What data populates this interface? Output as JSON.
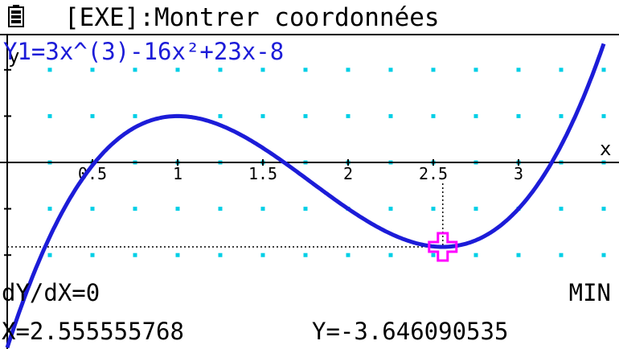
{
  "status_bar": {
    "title": "[EXE]:Montrer coordonnées",
    "battery_icon": "battery-icon"
  },
  "graph": {
    "function_label": "Y1=3x^(3)-16x²+23x-8",
    "x_axis_name": "x",
    "y_axis_name": "y",
    "x_tick_labels": [
      "0.5",
      "1",
      "1.5",
      "2",
      "2.5",
      "3"
    ],
    "curve_color": "#1c1cd8",
    "grid_dot_color": "#00cfe6",
    "cursor_color": "#ff00ff"
  },
  "chart_data": {
    "type": "line",
    "series": [
      {
        "name": "Y1=3x^(3)-16x²+23x-8",
        "formula": "3x^3-16x^2+23x-8"
      }
    ],
    "x": [
      0.0,
      0.25,
      0.5,
      0.75,
      1.0,
      1.25,
      1.5,
      1.75,
      2.0,
      2.25,
      2.5,
      2.75,
      3.0,
      3.25,
      3.5
    ],
    "y": [
      -8.0,
      -3.2,
      -0.13,
      1.47,
      2.0,
      1.67,
      0.63,
      -0.66,
      -2.0,
      -3.09,
      -3.63,
      -3.33,
      -2.0,
      0.67,
      4.88
    ],
    "xlim": [
      0.0,
      3.5
    ],
    "ylim": [
      -6.0,
      6.0
    ],
    "grid": true,
    "marked_point": {
      "x": 2.555555768,
      "y": -3.646090535,
      "type": "MIN"
    }
  },
  "readout": {
    "derivative": "dY/dX=0",
    "extremum_type": "MIN",
    "x_value": "X=2.555555768",
    "y_value": "Y=-3.646090535"
  }
}
